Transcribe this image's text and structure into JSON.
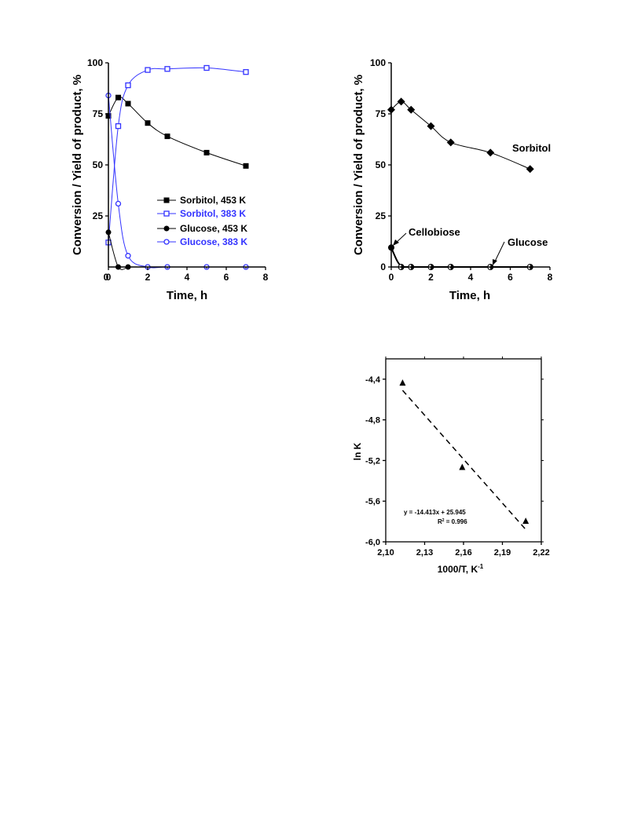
{
  "colors": {
    "black": "#000000",
    "blue": "#3333ff"
  },
  "chart_data": [
    {
      "type": "line",
      "xlabel": "Time, h",
      "ylabel": "Conversion / Yield of product, %",
      "xlim": [
        0,
        8
      ],
      "ylim": [
        0,
        100
      ],
      "xticks": [
        "0",
        "2",
        "4",
        "6",
        "8"
      ],
      "yticks": [
        "25",
        "50",
        "75",
        "100"
      ],
      "series": [
        {
          "name": "Sorbitol, 453 K",
          "color": "#000000",
          "marker": "filled-square",
          "x": [
            0,
            0.5,
            1,
            2,
            3,
            5,
            7
          ],
          "y": [
            74,
            83,
            80,
            70.5,
            64,
            56,
            49.5
          ]
        },
        {
          "name": "Sorbitol, 383 K",
          "color": "#3333ff",
          "marker": "open-square",
          "x": [
            0,
            0.5,
            1,
            2,
            3,
            5,
            7
          ],
          "y": [
            12,
            69,
            89,
            96.5,
            97,
            97.5,
            95.5
          ]
        },
        {
          "name": "Glucose, 453 K",
          "color": "#000000",
          "marker": "filled-circle",
          "x": [
            0,
            0.5,
            1
          ],
          "y": [
            17,
            0,
            0
          ]
        },
        {
          "name": "Glucose, 383 K",
          "color": "#3333ff",
          "marker": "open-circle",
          "x": [
            0,
            0.5,
            1,
            2,
            3,
            5,
            7
          ],
          "y": [
            84,
            31,
            5.5,
            0,
            0,
            0,
            0
          ]
        }
      ]
    },
    {
      "type": "line",
      "xlabel": "Time, h",
      "ylabel": "Conversion / Yield of product, %",
      "xlim": [
        0,
        8
      ],
      "ylim": [
        0,
        100
      ],
      "xticks": [
        "0",
        "2",
        "4",
        "6",
        "8"
      ],
      "yticks": [
        "0",
        "25",
        "50",
        "75",
        "100"
      ],
      "annotations": [
        "Sorbitol",
        "Cellobiose",
        "Glucose"
      ],
      "series": [
        {
          "name": "Sorbitol",
          "marker": "filled-diamond",
          "x": [
            0,
            0.5,
            1,
            2,
            3,
            5,
            7
          ],
          "y": [
            77,
            81,
            77,
            69,
            61,
            56,
            48
          ]
        },
        {
          "name": "Cellobiose",
          "marker": "filled-circle",
          "x": [
            0
          ],
          "y": [
            9.5
          ]
        },
        {
          "name": "Glucose",
          "marker": "half-circle",
          "x": [
            0.5,
            1,
            2,
            3,
            5,
            7
          ],
          "y": [
            0,
            0,
            0,
            0,
            0,
            0
          ]
        }
      ]
    },
    {
      "type": "scatter",
      "xlabel": "1000/T, K",
      "xlabel_sup": "-1",
      "ylabel": "ln K",
      "xlim": [
        2.1,
        2.22
      ],
      "ylim": [
        -6.0,
        -4.2
      ],
      "xticks": [
        "2,10",
        "2,13",
        "2,16",
        "2,19",
        "2,22"
      ],
      "yticks": [
        "-6,0",
        "-5,6",
        "-5,2",
        "-4,8",
        "-4,4"
      ],
      "equation": "y = -14.413x + 25.945",
      "r2_label": "R",
      "r2_value": " = 0.996",
      "fit": {
        "slope": -14.413,
        "intercept": 25.945
      },
      "points": [
        {
          "x": 2.113,
          "y": -4.44
        },
        {
          "x": 2.159,
          "y": -5.27
        },
        {
          "x": 2.208,
          "y": -5.8
        }
      ]
    }
  ]
}
